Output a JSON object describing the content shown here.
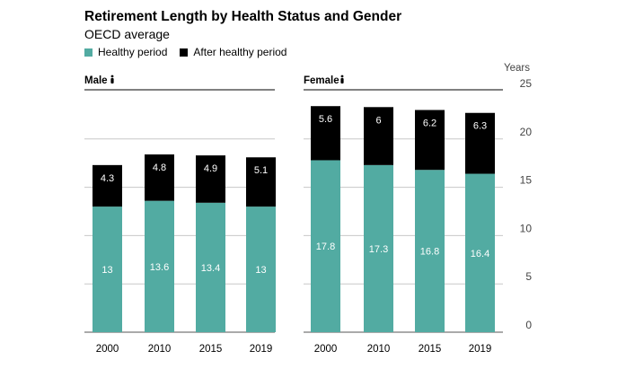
{
  "title": "Retirement Length by Health Status and Gender",
  "subtitle": "OECD average",
  "legend": [
    {
      "label": "Healthy period",
      "color": "#52aba2"
    },
    {
      "label": "After healthy period",
      "color": "#000000"
    }
  ],
  "chart_data": {
    "type": "bar",
    "stacked": true,
    "y_unit_label": "Years",
    "ylim": [
      0,
      25
    ],
    "yticks": [
      0,
      5,
      10,
      15,
      20,
      25
    ],
    "grid": true,
    "panels": [
      {
        "label": "Male",
        "categories": [
          "2000",
          "2010",
          "2015",
          "2019"
        ],
        "series": [
          {
            "name": "Healthy period",
            "values": [
              13,
              13.6,
              13.4,
              13
            ]
          },
          {
            "name": "After healthy period",
            "values": [
              4.3,
              4.8,
              4.9,
              5.1
            ]
          }
        ]
      },
      {
        "label": "Female",
        "categories": [
          "2000",
          "2010",
          "2015",
          "2019"
        ],
        "series": [
          {
            "name": "Healthy period",
            "values": [
              17.8,
              17.3,
              16.8,
              16.4
            ]
          },
          {
            "name": "After healthy period",
            "values": [
              5.6,
              6,
              6.2,
              6.3
            ]
          }
        ]
      }
    ]
  }
}
